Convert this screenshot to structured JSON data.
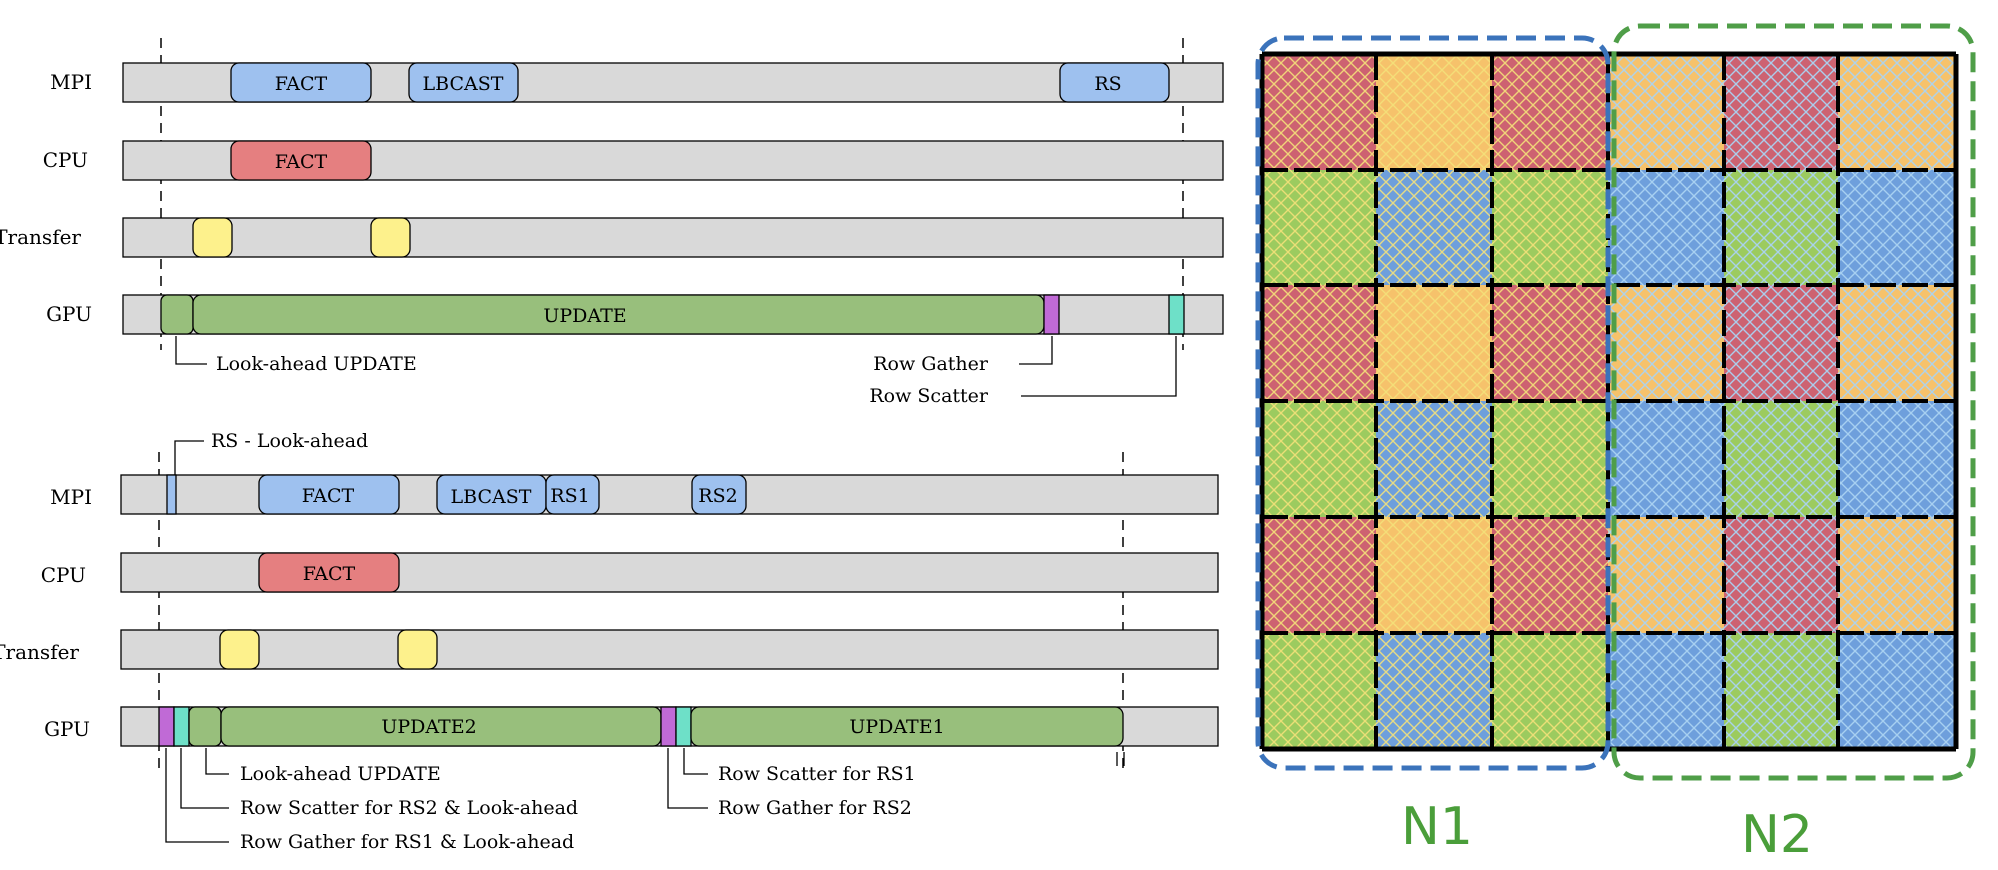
{
  "colors": {
    "track": "#d9d9d9",
    "mpi": "#9ec1ef",
    "cpu": "#e57f80",
    "transfer": "#fdf18c",
    "gpu": "#98bf7c",
    "gather": "#c06ad6",
    "scatter": "#6ee0c8",
    "grid_red": "#cd6271",
    "grid_orange": "#f6c26b",
    "grid_green": "#9ccb5f",
    "grid_blue": "#6e9fdc",
    "n1_border": "#3b73bb",
    "n2_border": "#4f9e48"
  },
  "top_diagram": {
    "lanes": [
      "MPI",
      "CPU",
      "Transfer",
      "GPU"
    ],
    "mpi_blocks": [
      "FACT",
      "LBCAST",
      "RS"
    ],
    "cpu_blocks": [
      "FACT"
    ],
    "gpu_blocks": [
      "UPDATE"
    ],
    "annotations": [
      "Look-ahead UPDATE",
      "Row Gather",
      "Row Scatter"
    ]
  },
  "bottom_diagram": {
    "lanes": [
      "MPI",
      "CPU",
      "Transfer",
      "GPU"
    ],
    "mpi_blocks": [
      "FACT",
      "LBCAST",
      "RS1",
      "RS2"
    ],
    "cpu_blocks": [
      "FACT"
    ],
    "gpu_blocks": [
      "UPDATE2",
      "UPDATE1"
    ],
    "annotations": [
      "RS - Look-ahead",
      "Look-ahead UPDATE",
      "Row Scatter for RS2 & Look-ahead",
      "Row Gather for RS1 & Look-ahead",
      "Row Scatter for RS1",
      "Row Gather for RS2"
    ]
  },
  "grid": {
    "rows": [
      [
        "red",
        "orange",
        "red",
        "orange",
        "red",
        "orange"
      ],
      [
        "green",
        "blue",
        "green",
        "blue",
        "green",
        "blue"
      ],
      [
        "red",
        "orange",
        "red",
        "orange",
        "red",
        "orange"
      ],
      [
        "green",
        "blue",
        "green",
        "blue",
        "green",
        "blue"
      ],
      [
        "red",
        "orange",
        "red",
        "orange",
        "red",
        "orange"
      ],
      [
        "green",
        "blue",
        "green",
        "blue",
        "green",
        "blue"
      ]
    ],
    "node_labels": [
      "N1",
      "N2"
    ]
  }
}
